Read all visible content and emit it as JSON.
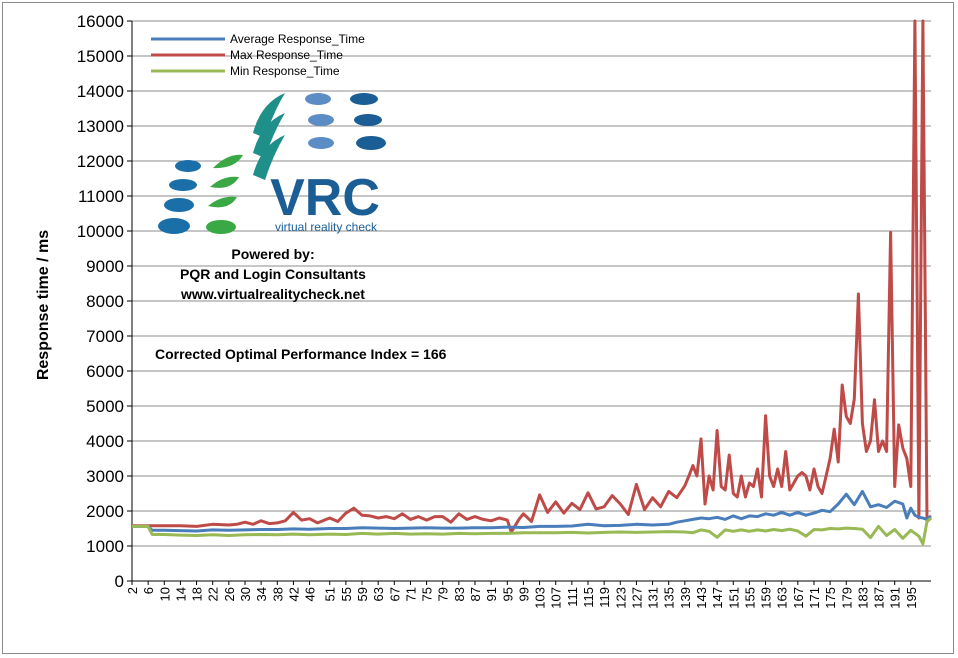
{
  "chart_data": {
    "type": "line",
    "ylabel": "Response time / ms",
    "ylim": [
      0,
      16000
    ],
    "yticks": [
      0,
      1000,
      2000,
      3000,
      4000,
      5000,
      6000,
      7000,
      8000,
      9000,
      10000,
      11000,
      12000,
      13000,
      14000,
      15000,
      16000
    ],
    "grid": true,
    "legend_position": "top-left",
    "x_tick_labels": [
      2,
      6,
      10,
      14,
      18,
      22,
      26,
      30,
      34,
      38,
      42,
      46,
      51,
      55,
      59,
      63,
      67,
      71,
      75,
      79,
      83,
      87,
      91,
      95,
      99,
      103,
      107,
      111,
      115,
      119,
      123,
      127,
      131,
      135,
      139,
      143,
      147,
      151,
      155,
      159,
      163,
      167,
      171,
      175,
      179,
      183,
      187,
      191,
      195
    ],
    "annotation": "Corrected Optimal Performance Index = 166",
    "series": [
      {
        "name": "Average Response_Time",
        "color": "#4A7EBB",
        "points": [
          [
            2,
            1560
          ],
          [
            6,
            1560
          ],
          [
            7,
            1450
          ],
          [
            10,
            1450
          ],
          [
            14,
            1440
          ],
          [
            18,
            1430
          ],
          [
            22,
            1460
          ],
          [
            26,
            1450
          ],
          [
            30,
            1460
          ],
          [
            34,
            1470
          ],
          [
            38,
            1470
          ],
          [
            42,
            1490
          ],
          [
            46,
            1480
          ],
          [
            51,
            1500
          ],
          [
            55,
            1500
          ],
          [
            59,
            1520
          ],
          [
            63,
            1510
          ],
          [
            67,
            1500
          ],
          [
            71,
            1510
          ],
          [
            75,
            1520
          ],
          [
            79,
            1510
          ],
          [
            83,
            1510
          ],
          [
            87,
            1520
          ],
          [
            91,
            1520
          ],
          [
            95,
            1540
          ],
          [
            99,
            1530
          ],
          [
            103,
            1560
          ],
          [
            107,
            1560
          ],
          [
            111,
            1570
          ],
          [
            115,
            1620
          ],
          [
            119,
            1580
          ],
          [
            123,
            1590
          ],
          [
            127,
            1620
          ],
          [
            131,
            1600
          ],
          [
            135,
            1620
          ],
          [
            137,
            1680
          ],
          [
            139,
            1720
          ],
          [
            141,
            1760
          ],
          [
            143,
            1800
          ],
          [
            145,
            1780
          ],
          [
            147,
            1820
          ],
          [
            149,
            1760
          ],
          [
            151,
            1860
          ],
          [
            153,
            1780
          ],
          [
            155,
            1860
          ],
          [
            157,
            1840
          ],
          [
            159,
            1920
          ],
          [
            161,
            1880
          ],
          [
            163,
            1960
          ],
          [
            165,
            1880
          ],
          [
            167,
            1960
          ],
          [
            169,
            1880
          ],
          [
            171,
            1940
          ],
          [
            173,
            2020
          ],
          [
            175,
            1980
          ],
          [
            177,
            2200
          ],
          [
            179,
            2480
          ],
          [
            181,
            2180
          ],
          [
            183,
            2560
          ],
          [
            185,
            2120
          ],
          [
            187,
            2180
          ],
          [
            189,
            2100
          ],
          [
            191,
            2280
          ],
          [
            193,
            2200
          ],
          [
            194,
            1800
          ],
          [
            195,
            2080
          ],
          [
            196,
            1880
          ],
          [
            197,
            1820
          ],
          [
            198,
            1800
          ],
          [
            199,
            1760
          ],
          [
            200,
            1860
          ]
        ]
      },
      {
        "name": "Max Response_Time",
        "color": "#BE4B48",
        "points": [
          [
            2,
            1580
          ],
          [
            6,
            1580
          ],
          [
            7,
            1580
          ],
          [
            10,
            1580
          ],
          [
            14,
            1580
          ],
          [
            18,
            1560
          ],
          [
            22,
            1620
          ],
          [
            26,
            1600
          ],
          [
            28,
            1620
          ],
          [
            30,
            1680
          ],
          [
            32,
            1620
          ],
          [
            34,
            1720
          ],
          [
            36,
            1640
          ],
          [
            38,
            1660
          ],
          [
            40,
            1720
          ],
          [
            42,
            1960
          ],
          [
            44,
            1740
          ],
          [
            46,
            1780
          ],
          [
            48,
            1660
          ],
          [
            51,
            1800
          ],
          [
            53,
            1700
          ],
          [
            55,
            1940
          ],
          [
            57,
            2080
          ],
          [
            59,
            1880
          ],
          [
            61,
            1860
          ],
          [
            63,
            1800
          ],
          [
            65,
            1840
          ],
          [
            67,
            1780
          ],
          [
            69,
            1920
          ],
          [
            71,
            1760
          ],
          [
            73,
            1840
          ],
          [
            75,
            1740
          ],
          [
            77,
            1840
          ],
          [
            79,
            1840
          ],
          [
            81,
            1680
          ],
          [
            83,
            1920
          ],
          [
            85,
            1760
          ],
          [
            87,
            1840
          ],
          [
            89,
            1760
          ],
          [
            91,
            1720
          ],
          [
            93,
            1800
          ],
          [
            95,
            1740
          ],
          [
            96,
            1400
          ],
          [
            98,
            1780
          ],
          [
            99,
            1920
          ],
          [
            101,
            1700
          ],
          [
            103,
            2460
          ],
          [
            105,
            1960
          ],
          [
            107,
            2260
          ],
          [
            109,
            1940
          ],
          [
            111,
            2220
          ],
          [
            113,
            2040
          ],
          [
            115,
            2520
          ],
          [
            117,
            2060
          ],
          [
            119,
            2120
          ],
          [
            121,
            2440
          ],
          [
            123,
            2200
          ],
          [
            125,
            1900
          ],
          [
            127,
            2760
          ],
          [
            129,
            2040
          ],
          [
            131,
            2380
          ],
          [
            133,
            2120
          ],
          [
            135,
            2560
          ],
          [
            137,
            2380
          ],
          [
            139,
            2720
          ],
          [
            140,
            3000
          ],
          [
            141,
            3300
          ],
          [
            142,
            3000
          ],
          [
            143,
            4060
          ],
          [
            144,
            2200
          ],
          [
            145,
            3000
          ],
          [
            146,
            2600
          ],
          [
            147,
            4300
          ],
          [
            148,
            2700
          ],
          [
            149,
            2600
          ],
          [
            150,
            3600
          ],
          [
            151,
            2500
          ],
          [
            152,
            2400
          ],
          [
            153,
            3000
          ],
          [
            154,
            2400
          ],
          [
            155,
            2800
          ],
          [
            156,
            2700
          ],
          [
            157,
            3200
          ],
          [
            158,
            2400
          ],
          [
            159,
            4720
          ],
          [
            160,
            3000
          ],
          [
            161,
            2700
          ],
          [
            162,
            3200
          ],
          [
            163,
            2700
          ],
          [
            164,
            3700
          ],
          [
            165,
            2600
          ],
          [
            166,
            2800
          ],
          [
            167,
            3000
          ],
          [
            168,
            3100
          ],
          [
            169,
            3000
          ],
          [
            170,
            2600
          ],
          [
            171,
            3200
          ],
          [
            172,
            2700
          ],
          [
            173,
            2500
          ],
          [
            174,
            3000
          ],
          [
            175,
            3500
          ],
          [
            176,
            4340
          ],
          [
            177,
            3400
          ],
          [
            178,
            5600
          ],
          [
            179,
            4700
          ],
          [
            180,
            4500
          ],
          [
            181,
            5200
          ],
          [
            182,
            8200
          ],
          [
            183,
            4500
          ],
          [
            184,
            3700
          ],
          [
            185,
            4000
          ],
          [
            186,
            5180
          ],
          [
            187,
            3700
          ],
          [
            188,
            4000
          ],
          [
            189,
            3700
          ],
          [
            190,
            9960
          ],
          [
            191,
            2700
          ],
          [
            192,
            4460
          ],
          [
            193,
            3800
          ],
          [
            194,
            3500
          ],
          [
            195,
            2700
          ],
          [
            196,
            16000
          ],
          [
            197,
            1800
          ],
          [
            198,
            16000
          ],
          [
            199,
            1700
          ],
          [
            200,
            1800
          ]
        ]
      },
      {
        "name": "Min Response_Time",
        "color": "#98B954",
        "points": [
          [
            2,
            1560
          ],
          [
            6,
            1560
          ],
          [
            7,
            1330
          ],
          [
            10,
            1330
          ],
          [
            14,
            1310
          ],
          [
            18,
            1300
          ],
          [
            22,
            1320
          ],
          [
            26,
            1300
          ],
          [
            30,
            1320
          ],
          [
            34,
            1330
          ],
          [
            38,
            1320
          ],
          [
            42,
            1340
          ],
          [
            46,
            1320
          ],
          [
            51,
            1340
          ],
          [
            55,
            1330
          ],
          [
            59,
            1360
          ],
          [
            63,
            1340
          ],
          [
            67,
            1360
          ],
          [
            71,
            1340
          ],
          [
            75,
            1350
          ],
          [
            79,
            1340
          ],
          [
            83,
            1360
          ],
          [
            87,
            1350
          ],
          [
            91,
            1360
          ],
          [
            95,
            1360
          ],
          [
            99,
            1380
          ],
          [
            103,
            1380
          ],
          [
            107,
            1380
          ],
          [
            111,
            1390
          ],
          [
            115,
            1370
          ],
          [
            119,
            1390
          ],
          [
            123,
            1400
          ],
          [
            127,
            1390
          ],
          [
            131,
            1400
          ],
          [
            135,
            1410
          ],
          [
            139,
            1400
          ],
          [
            141,
            1380
          ],
          [
            143,
            1460
          ],
          [
            145,
            1420
          ],
          [
            147,
            1250
          ],
          [
            149,
            1460
          ],
          [
            151,
            1420
          ],
          [
            153,
            1460
          ],
          [
            155,
            1420
          ],
          [
            157,
            1460
          ],
          [
            159,
            1430
          ],
          [
            161,
            1470
          ],
          [
            163,
            1440
          ],
          [
            165,
            1480
          ],
          [
            167,
            1430
          ],
          [
            169,
            1280
          ],
          [
            171,
            1470
          ],
          [
            173,
            1460
          ],
          [
            175,
            1500
          ],
          [
            177,
            1490
          ],
          [
            179,
            1510
          ],
          [
            181,
            1500
          ],
          [
            183,
            1480
          ],
          [
            185,
            1240
          ],
          [
            187,
            1560
          ],
          [
            189,
            1300
          ],
          [
            191,
            1470
          ],
          [
            193,
            1220
          ],
          [
            195,
            1450
          ],
          [
            197,
            1280
          ],
          [
            198,
            1060
          ],
          [
            199,
            1700
          ],
          [
            200,
            1800
          ]
        ]
      }
    ]
  },
  "logo": {
    "brand_text": "VRC",
    "tagline": "virtual reality check",
    "powered_line1": "Powered by:",
    "powered_line2": "PQR and Login Consultants",
    "powered_line3": "www.virtualrealitycheck.net"
  },
  "colors": {
    "brand_blue": "#1B5E96",
    "brand_light_blue": "#5B8CC4",
    "brand_teal": "#1F8F8A",
    "brand_green": "#3AA845"
  }
}
